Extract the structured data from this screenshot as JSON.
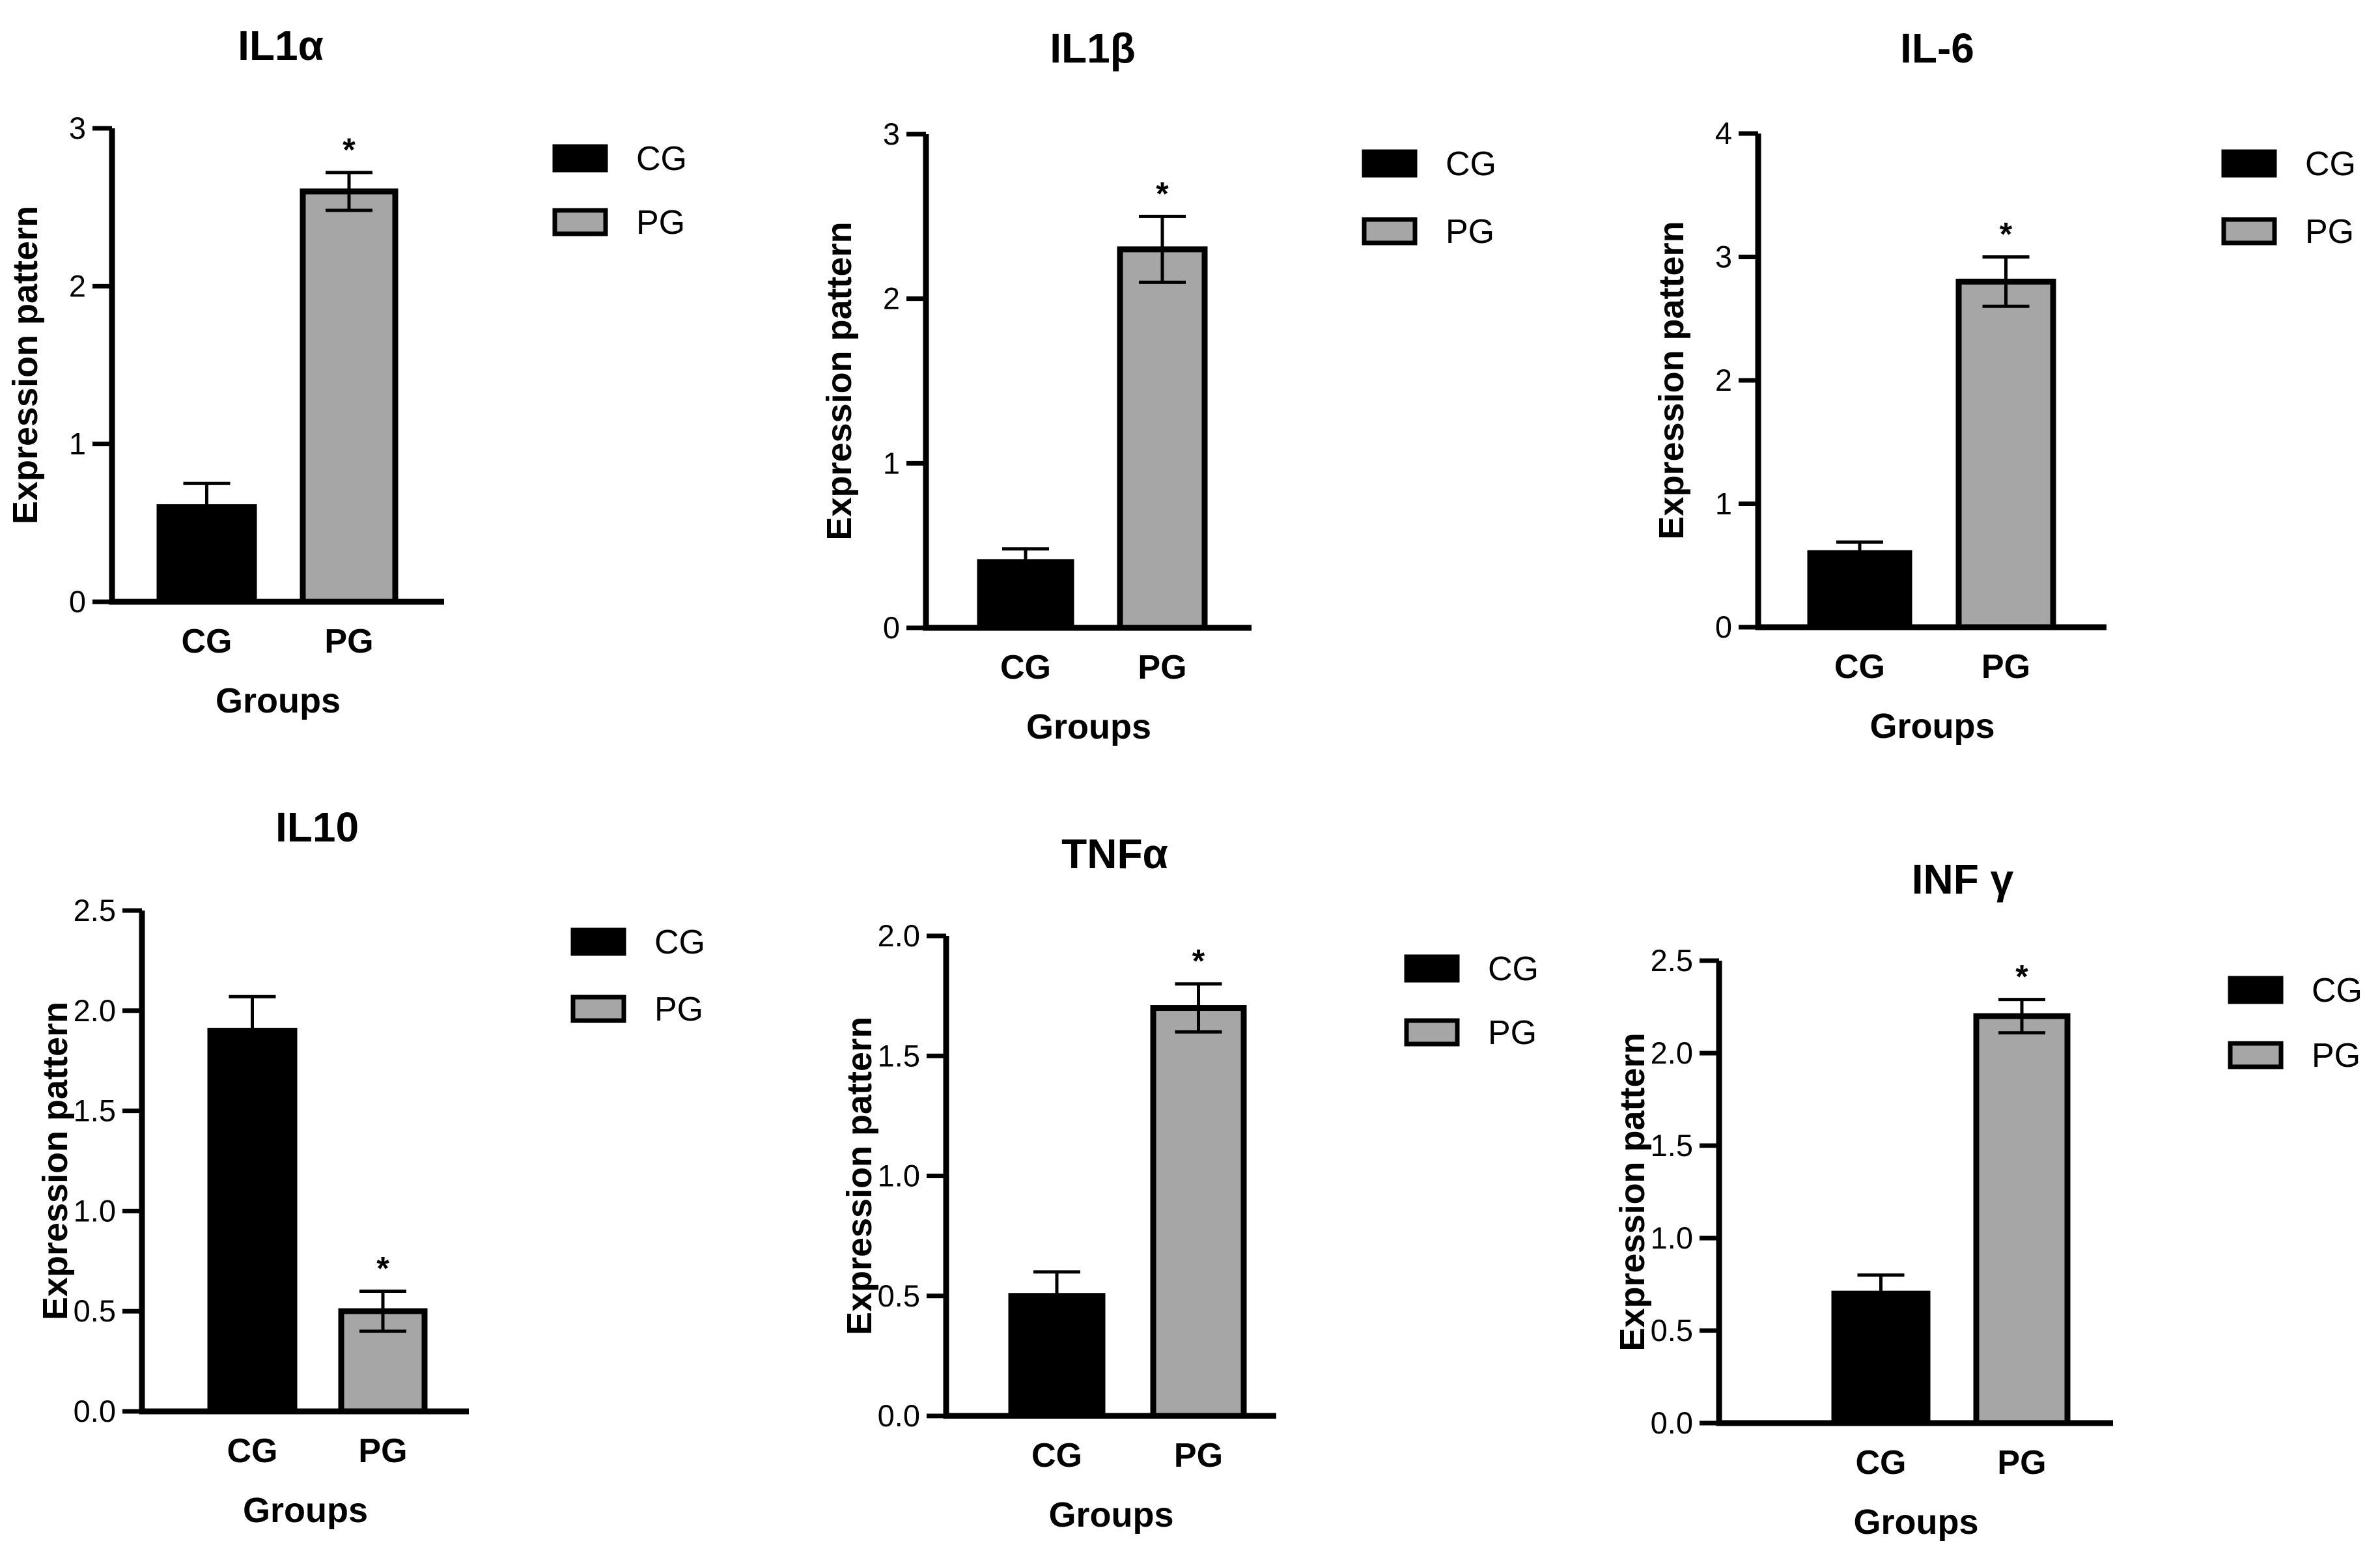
{
  "colors": {
    "cg": "#000000",
    "pg": "#a6a6a6",
    "axis": "#000000"
  },
  "legend_labels": [
    "CG",
    "PG"
  ],
  "chart_data": [
    {
      "type": "bar",
      "title": "IL1α",
      "xlabel": "Groups",
      "ylabel": "Expression pattern",
      "categories": [
        "CG",
        "PG"
      ],
      "values": [
        0.6,
        2.6
      ],
      "errors": [
        0.15,
        0.12
      ],
      "significance": [
        "",
        "*"
      ],
      "ylim": [
        0,
        3
      ],
      "yticks": [
        "0",
        "1",
        "2",
        "3"
      ],
      "ytick_values": [
        0,
        1,
        2,
        3
      ],
      "legend": "right"
    },
    {
      "type": "bar",
      "title": "IL1β",
      "xlabel": "Groups",
      "ylabel": "Expression pattern",
      "categories": [
        "CG",
        "PG"
      ],
      "values": [
        0.4,
        2.3
      ],
      "errors": [
        0.08,
        0.2
      ],
      "significance": [
        "",
        "*"
      ],
      "ylim": [
        0,
        3
      ],
      "yticks": [
        "0",
        "1",
        "2",
        "3"
      ],
      "ytick_values": [
        0,
        1,
        2,
        3
      ],
      "legend": "right"
    },
    {
      "type": "bar",
      "title": "IL-6",
      "xlabel": "Groups",
      "ylabel": "Expression pattern",
      "categories": [
        "CG",
        "PG"
      ],
      "values": [
        0.6,
        2.8
      ],
      "errors": [
        0.09,
        0.2
      ],
      "significance": [
        "",
        "*"
      ],
      "ylim": [
        0,
        4
      ],
      "yticks": [
        "0",
        "1",
        "2",
        "3",
        "4"
      ],
      "ytick_values": [
        0,
        1,
        2,
        3,
        4
      ],
      "legend": "right"
    },
    {
      "type": "bar",
      "title": "IL10",
      "xlabel": "Groups",
      "ylabel": "Expression pattern",
      "categories": [
        "CG",
        "PG"
      ],
      "values": [
        1.9,
        0.5
      ],
      "errors": [
        0.17,
        0.1
      ],
      "significance": [
        "",
        "*"
      ],
      "ylim": [
        0,
        2.5
      ],
      "yticks": [
        "0.0",
        "0.5",
        "1.0",
        "1.5",
        "2.0",
        "2.5"
      ],
      "ytick_values": [
        0,
        0.5,
        1.0,
        1.5,
        2.0,
        2.5
      ],
      "legend": "right"
    },
    {
      "type": "bar",
      "title": "TNFα",
      "xlabel": "Groups",
      "ylabel": "Expression pattern",
      "categories": [
        "CG",
        "PG"
      ],
      "values": [
        0.5,
        1.7
      ],
      "errors": [
        0.1,
        0.1
      ],
      "significance": [
        "",
        "*"
      ],
      "ylim": [
        0,
        2.0
      ],
      "yticks": [
        "0.0",
        "0.5",
        "1.0",
        "1.5",
        "2.0"
      ],
      "ytick_values": [
        0,
        0.5,
        1.0,
        1.5,
        2.0
      ],
      "legend": "right"
    },
    {
      "type": "bar",
      "title": "INF γ",
      "xlabel": "Groups",
      "ylabel": "Expression pattern",
      "categories": [
        "CG",
        "PG"
      ],
      "values": [
        0.7,
        2.2
      ],
      "errors": [
        0.1,
        0.09
      ],
      "significance": [
        "",
        "*"
      ],
      "ylim": [
        0,
        2.5
      ],
      "yticks": [
        "0.0",
        "0.5",
        "1.0",
        "1.5",
        "2.0",
        "2.5"
      ],
      "ytick_values": [
        0,
        0.5,
        1.0,
        1.5,
        2.0,
        2.5
      ],
      "legend": "right"
    }
  ]
}
